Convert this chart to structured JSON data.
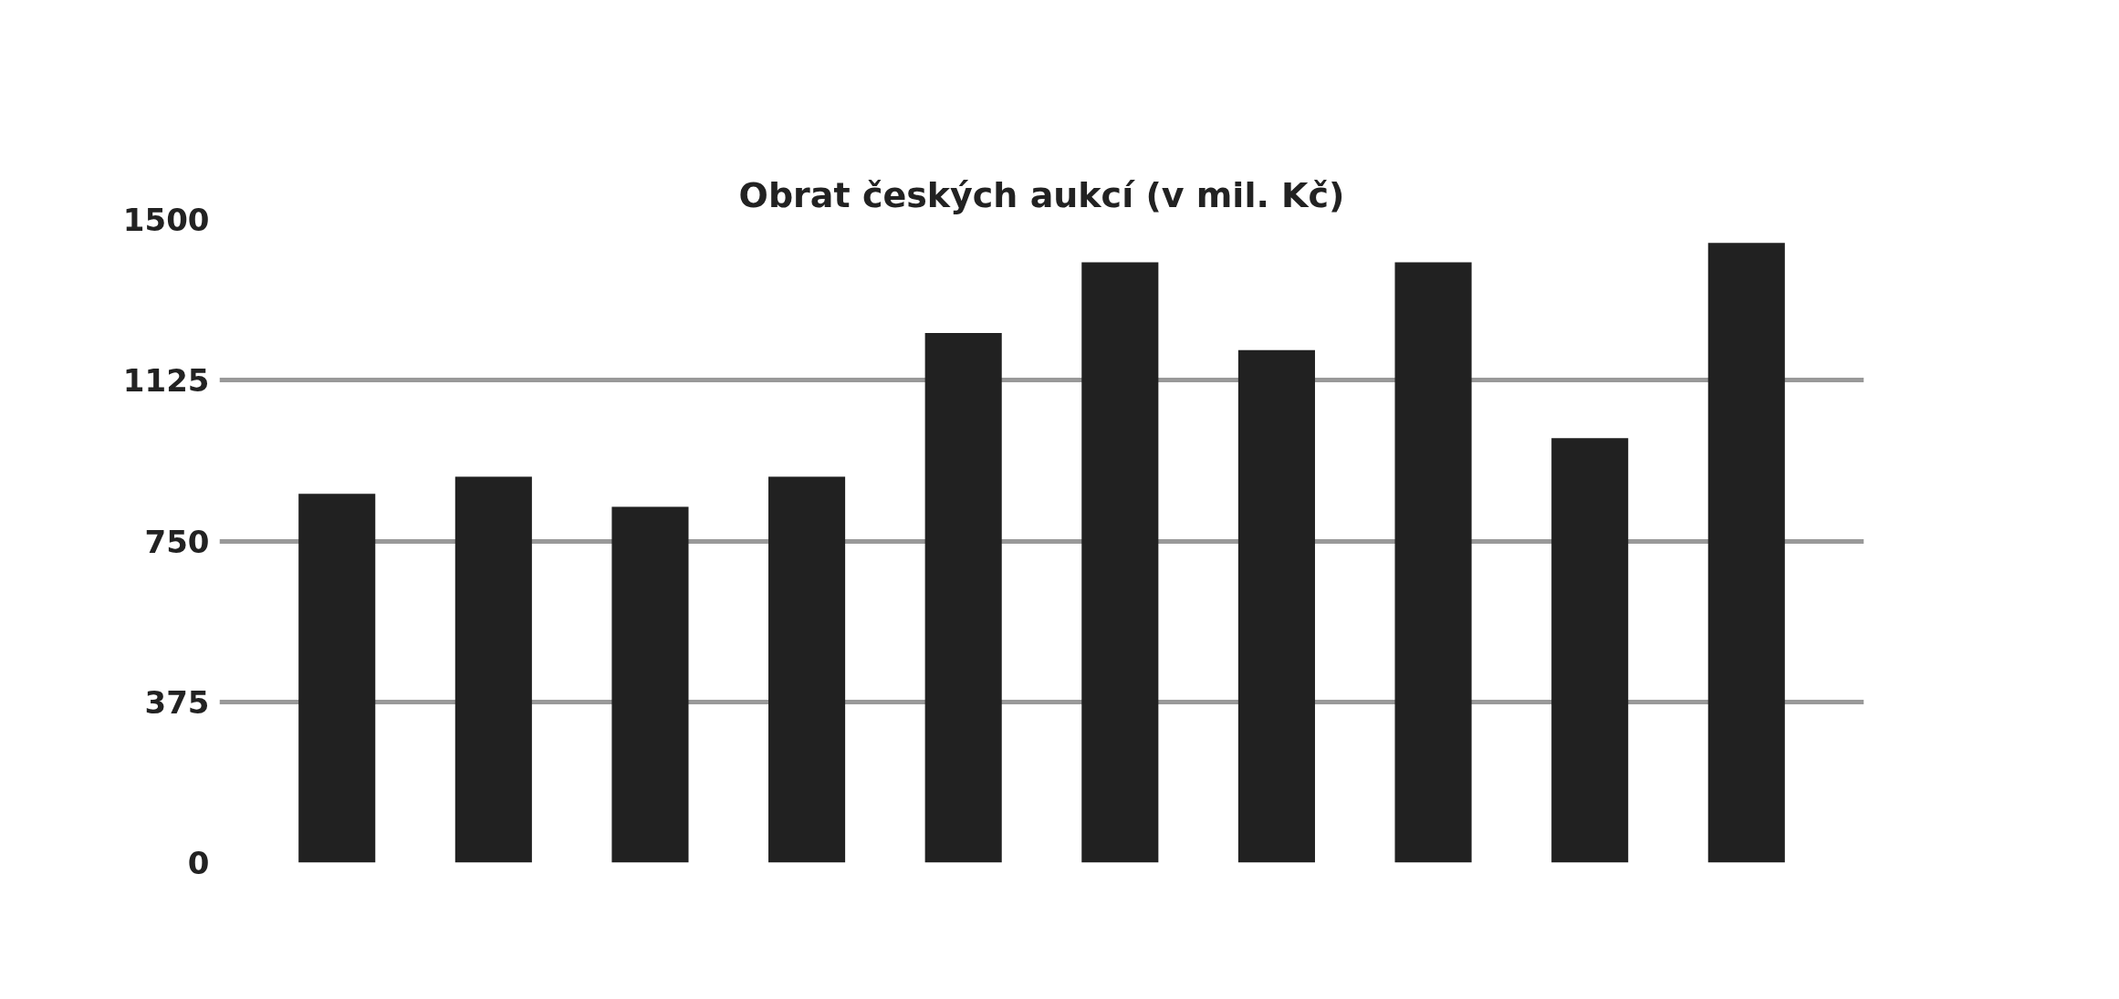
{
  "chart_data": {
    "type": "bar",
    "title": "Obrat českých aukcí (v mil. Kč)",
    "categories": [
      null,
      null,
      null,
      null,
      null,
      null,
      null,
      null,
      null,
      null
    ],
    "values": [
      860,
      900,
      830,
      900,
      1235,
      1400,
      1195,
      1400,
      990,
      1445
    ],
    "color": "#212121",
    "ylim": [
      0,
      1500
    ],
    "yticks": [
      0,
      375,
      750,
      1125,
      1500
    ],
    "grid": "y"
  }
}
